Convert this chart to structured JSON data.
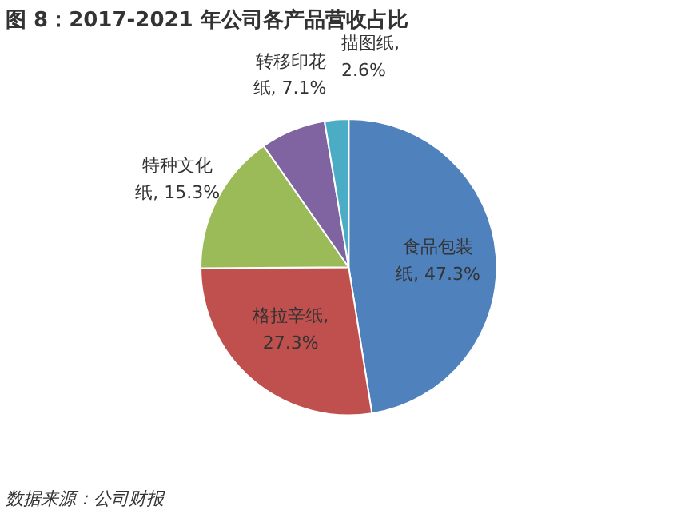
{
  "chart_data": {
    "type": "pie",
    "title": "图 8：2017-2021 年公司各产品营收占比",
    "categories": [
      "食品包装纸",
      "格拉辛纸",
      "特种文化纸",
      "转移印花纸",
      "描图纸"
    ],
    "values": [
      47.3,
      27.3,
      15.3,
      7.1,
      2.6
    ],
    "colors": [
      "#4f81bd",
      "#c0504d",
      "#9bbb59",
      "#8064a2",
      "#4bacc6"
    ],
    "value_labels": [
      ", 47.3%",
      ", 27.3%",
      ", 15.3%",
      ", 7.1%",
      ", 2.6%"
    ],
    "annotations": [
      "数据来源：公司财报"
    ]
  }
}
